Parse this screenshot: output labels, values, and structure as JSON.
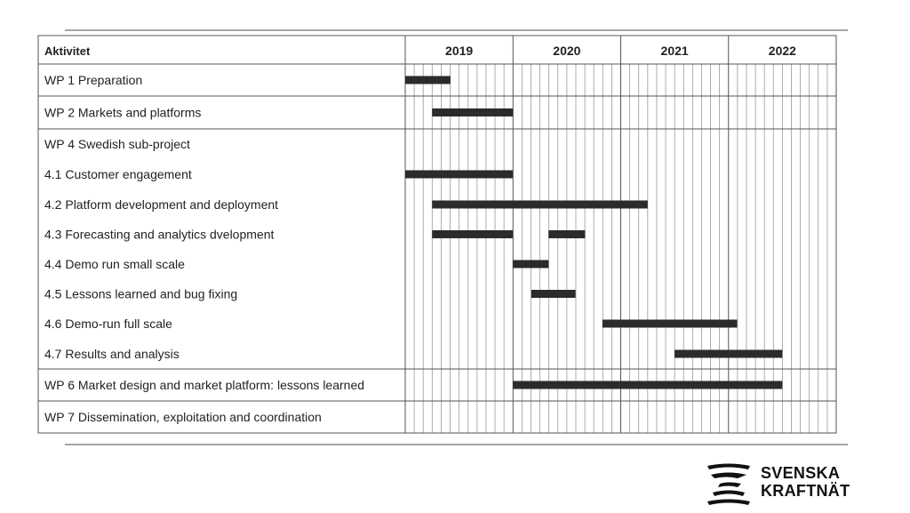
{
  "chart_data": {
    "type": "gantt",
    "header_label": "Aktivitet",
    "years": [
      "2019",
      "2020",
      "2021",
      "2022"
    ],
    "time_range": [
      2019.0,
      2023.0
    ],
    "rows": [
      {
        "label": "WP 1 Preparation",
        "bars": [
          [
            2019.0,
            2019.42
          ]
        ]
      },
      {
        "label": "WP 2 Markets and platforms",
        "bars": [
          [
            2019.25,
            2020.0
          ]
        ]
      },
      {
        "label": "WP 4 Swedish sub-project",
        "bars": []
      },
      {
        "label": "4.1 Customer engagement",
        "bars": [
          [
            2019.0,
            2020.0
          ]
        ]
      },
      {
        "label": "4.2 Platform development and deployment",
        "bars": [
          [
            2019.25,
            2021.25
          ]
        ]
      },
      {
        "label": "4.3 Forecasting and analytics dvelopment",
        "bars": [
          [
            2019.25,
            2020.0
          ],
          [
            2020.33,
            2020.67
          ]
        ]
      },
      {
        "label": "4.4 Demo run small scale",
        "bars": [
          [
            2020.0,
            2020.33
          ]
        ]
      },
      {
        "label": "4.5 Lessons learned and bug fixing",
        "bars": [
          [
            2020.17,
            2020.58
          ]
        ]
      },
      {
        "label": "4.6 Demo-run full scale",
        "bars": [
          [
            2020.83,
            2022.08
          ]
        ]
      },
      {
        "label": "4.7 Results and analysis",
        "bars": [
          [
            2021.5,
            2022.5
          ]
        ]
      },
      {
        "label": "WP 6 Market design and market platform: lessons learned",
        "bars": [
          [
            2020.0,
            2022.5
          ]
        ]
      },
      {
        "label": "WP 7 Dissemination, exploitation and coordination",
        "bars": []
      }
    ],
    "groups": [
      [
        0
      ],
      [
        1
      ],
      [
        2,
        3,
        4,
        5,
        6,
        7,
        8,
        9
      ],
      [
        10
      ],
      [
        11
      ]
    ]
  },
  "logo": {
    "line1": "SVENSKA",
    "line2": "KRAFTNÄT"
  },
  "colors": {
    "bar": "#2b2b2b",
    "grid": "#999999",
    "frame": "#555555"
  }
}
